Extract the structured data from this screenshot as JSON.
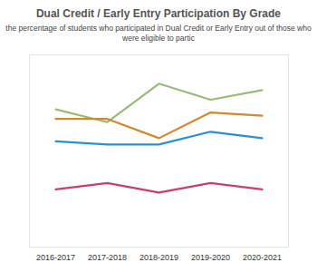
{
  "chart_data": {
    "type": "line",
    "title": "Dual Credit / Early Entry Participation By Grade",
    "subtitle": "the percentage of students who participated in Dual Credit or Early Entry out of those who were eligible to partic",
    "categories": [
      "2016-2017",
      "2017-2018",
      "2018-2019",
      "2019-2020",
      "2020-2021"
    ],
    "series": [
      {
        "color": "#9cb97c",
        "values": [
          43,
          39,
          51,
          46,
          49
        ]
      },
      {
        "color": "#d08a2e",
        "values": [
          40,
          40,
          34,
          42,
          41
        ]
      },
      {
        "color": "#2a8fd6",
        "values": [
          33,
          32,
          32,
          36,
          34
        ]
      },
      {
        "color": "#cc3d6e",
        "values": [
          18,
          20,
          17,
          20,
          18
        ]
      }
    ],
    "ylim": [
      0,
      60
    ],
    "tick_labels": "x",
    "grid": false
  }
}
